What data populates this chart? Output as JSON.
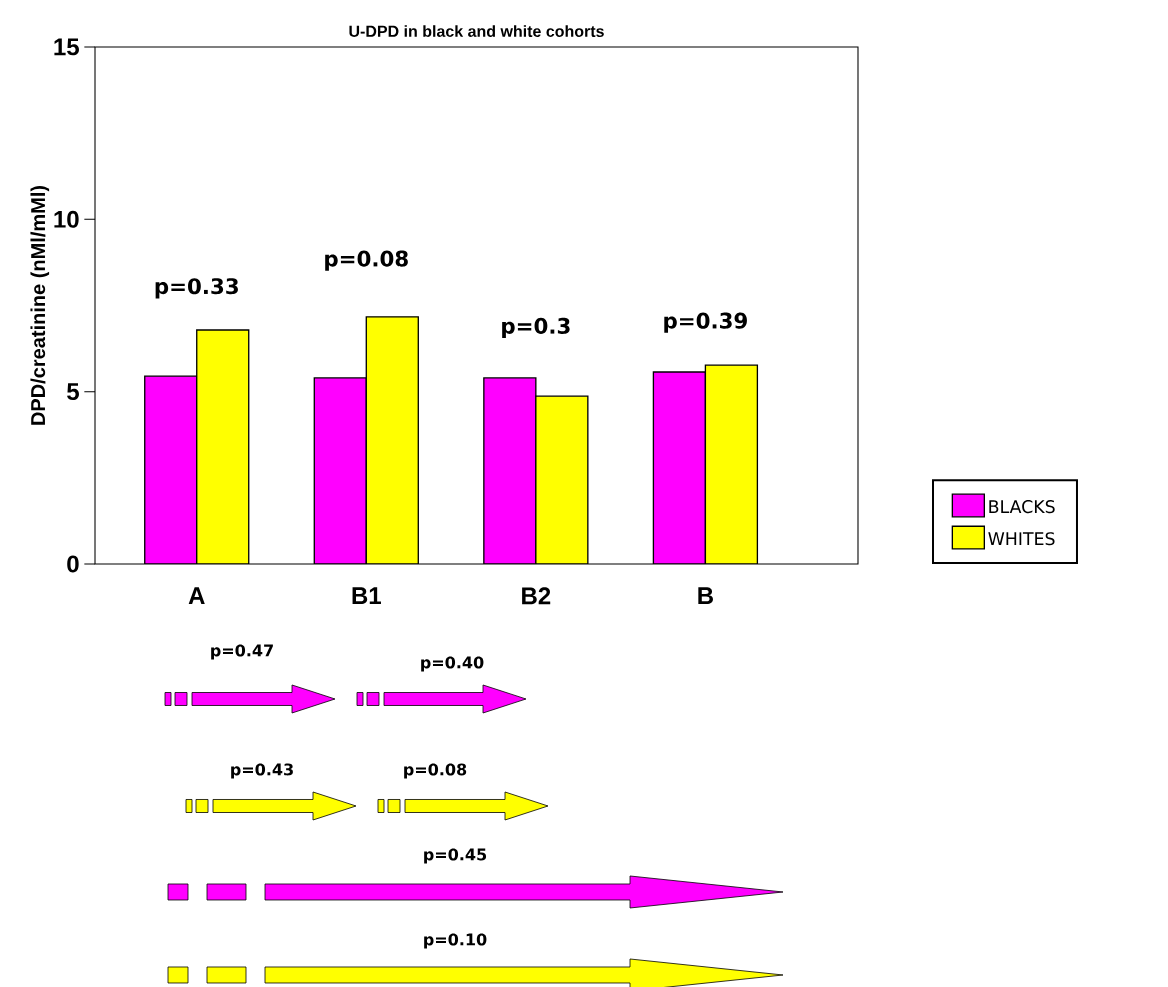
{
  "chart_data": {
    "type": "bar",
    "title": "U-DPD in black and white cohorts",
    "ylabel": "DPD/creatinine (nMl/mMl)",
    "categories": [
      "A",
      "B1",
      "B2",
      "B"
    ],
    "series": [
      {
        "name": "BLACKS",
        "color": "#ff00ff",
        "values": [
          5.45,
          5.4,
          5.4,
          5.57
        ]
      },
      {
        "name": "WHITES",
        "color": "#ffff00",
        "values": [
          6.79,
          7.17,
          4.87,
          5.77
        ]
      }
    ],
    "ylim": [
      0,
      15
    ],
    "yticks": [
      0,
      5,
      10,
      15
    ],
    "legend": "right",
    "annotations": [
      "p=0.33",
      "p=0.08",
      "p=0.3",
      "p=0.39",
      "p=0.47",
      "p=0.40",
      "p=0.43",
      "p=0.08",
      "p=0.45",
      "p=0.10"
    ]
  }
}
